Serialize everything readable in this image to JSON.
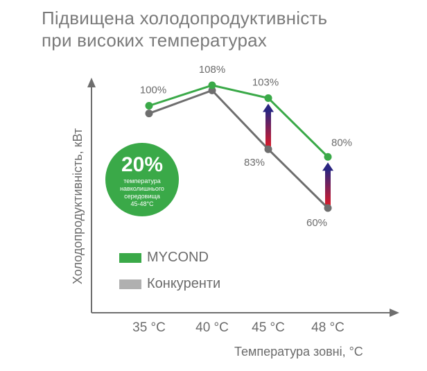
{
  "title_line1": "Підвищена холодопродуктивність",
  "title_line2": "при високих температурах",
  "badge": {
    "value": "20%",
    "caption": "температура\nнавколишнього\nсередовища\n45-48°C"
  },
  "colors": {
    "mycond": "#3aa948",
    "competitors": "#6e6e6e",
    "competitors_legend": "#b0b0b0",
    "axis": "#6e6e6e",
    "arrow_top": "#2a2580",
    "arrow_bottom": "#d81b2a"
  },
  "chart_data": {
    "type": "line",
    "categories": [
      "35 °C",
      "40 °C",
      "45 °C",
      "48 °C"
    ],
    "xlabel": "Температура зовні, °C",
    "ylabel": "Холодопродуктивність, кВт",
    "series": [
      {
        "name": "MYCOND",
        "values": [
          100,
          108,
          103,
          80
        ],
        "labels": [
          "100%",
          "108%",
          "103%",
          "80%"
        ]
      },
      {
        "name": "Конкуренти",
        "values": [
          97,
          106,
          83,
          60
        ],
        "labels": [
          "",
          "",
          "83%",
          "60%"
        ]
      }
    ],
    "ylim": [
      30,
      130
    ],
    "grid": false,
    "legend": "bottom-left",
    "improvement_arrows": [
      "45 °C",
      "48 °C"
    ]
  }
}
